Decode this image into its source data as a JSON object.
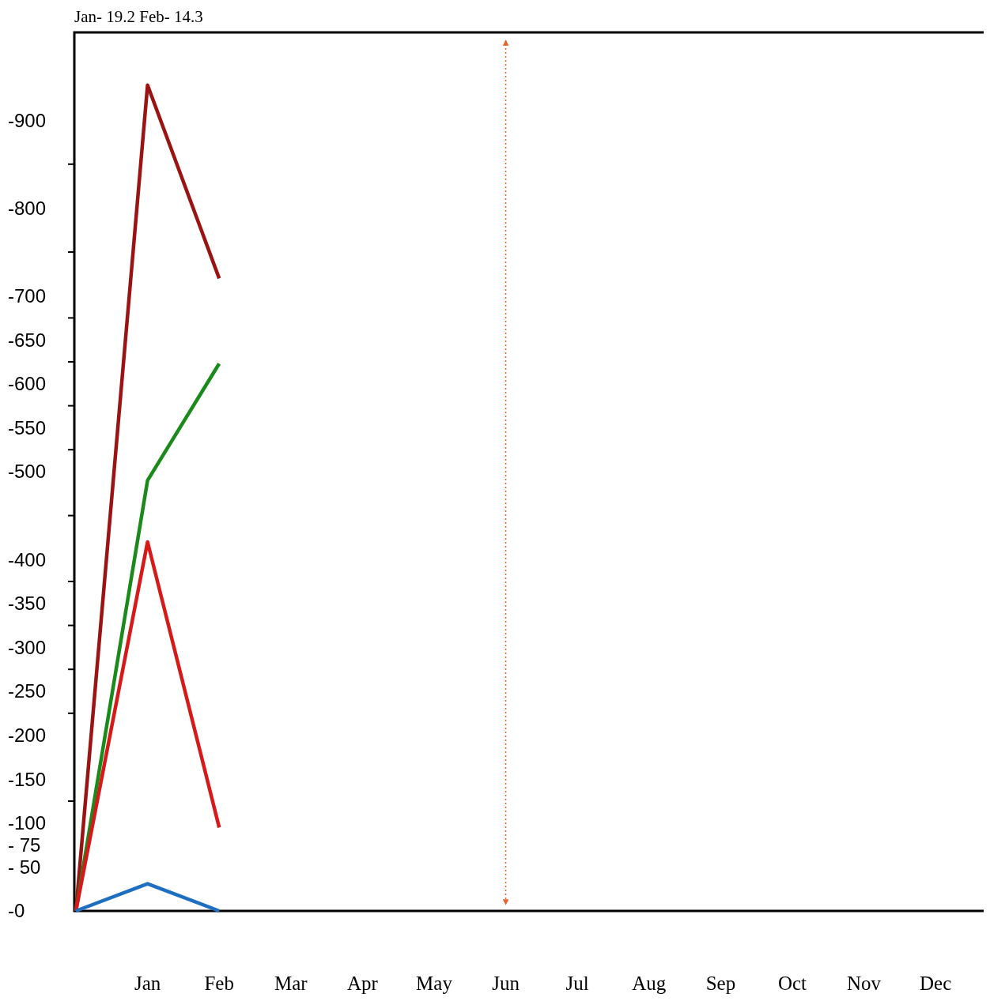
{
  "chart_data": {
    "type": "line",
    "title": "Jan- 19.2  Feb- 14.3",
    "categories": [
      null,
      "Jan",
      "Feb",
      "Mar",
      "Apr",
      "May",
      "Jun",
      "Jul",
      "Aug",
      "Sep",
      "Oct",
      "Nov",
      "Dec"
    ],
    "series": [
      {
        "color": "#9b1414",
        "values": [
          0,
          -940,
          -720,
          null,
          null,
          null,
          null,
          null,
          null,
          null,
          null,
          null,
          null
        ]
      },
      {
        "color": "#1a8a1a",
        "values": [
          0,
          -490,
          -623,
          null,
          null,
          null,
          null,
          null,
          null,
          null,
          null,
          null,
          null
        ]
      },
      {
        "color": "#d61a1a",
        "values": [
          0,
          -420,
          -95,
          null,
          null,
          null,
          null,
          null,
          null,
          null,
          null,
          null,
          null
        ]
      },
      {
        "color": "#1f6fc0",
        "values": [
          0,
          -31,
          0,
          null,
          null,
          null,
          null,
          null,
          null,
          null,
          null,
          null,
          null
        ]
      }
    ],
    "ylim": [
      0,
      -1000
    ],
    "yticks": [
      {
        "value": 0,
        "label": "-0"
      },
      {
        "value": -50,
        "label": "- 50"
      },
      {
        "value": -75,
        "label": "- 75"
      },
      -100,
      {
        "value": -125,
        "label": null
      },
      -150,
      -200,
      {
        "value": -225,
        "label": null
      },
      -250,
      {
        "value": -275,
        "label": null
      },
      -300,
      {
        "value": -325,
        "label": null
      },
      -350,
      {
        "value": -375,
        "label": null
      },
      -400,
      {
        "value": -450,
        "label": null
      },
      -500,
      {
        "value": -525,
        "label": null
      },
      -550,
      {
        "value": -575,
        "label": null
      },
      -600,
      {
        "value": -625,
        "label": null
      },
      -650,
      {
        "value": -675,
        "label": null
      },
      -700,
      {
        "value": -750,
        "label": null
      },
      -800,
      {
        "value": -850,
        "label": null
      },
      -900
    ],
    "ref_lines": [
      {
        "axis": "x",
        "value": "Jun",
        "color": "#e8622a",
        "line_style": "dotted"
      }
    ],
    "grid": false,
    "marker": "none",
    "line_style": "solid"
  }
}
